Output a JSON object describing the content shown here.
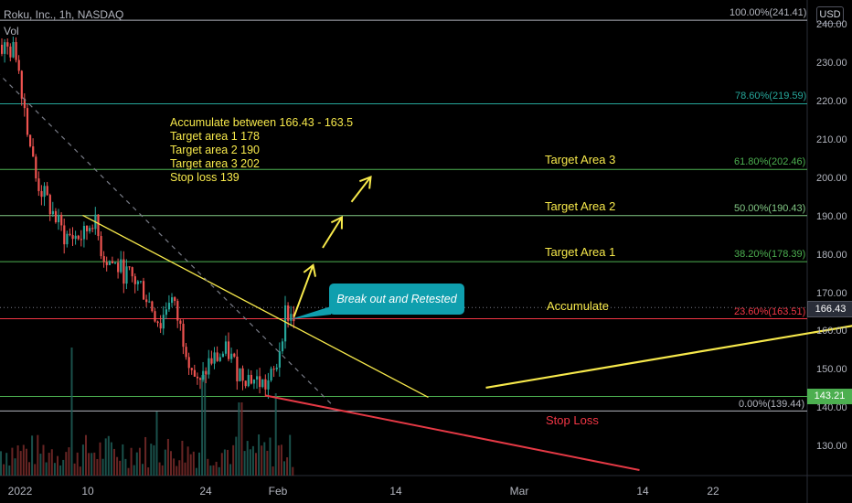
{
  "header": {
    "title": "Roku, Inc., 1h, NASDAQ",
    "vol_label": "Vol",
    "currency": "USD"
  },
  "y_ticks": [
    "240.00",
    "230.00",
    "220.00",
    "210.00",
    "200.00",
    "190.00",
    "180.00",
    "170.00",
    "160.00",
    "150.00",
    "140.00",
    "130.00"
  ],
  "x_ticks": [
    "2022",
    "10",
    "24",
    "Feb",
    "14",
    "Mar",
    "14",
    "22"
  ],
  "fib_levels": [
    {
      "label": "100.00%(241.41)",
      "price": 241.41,
      "color": "#b2b5be"
    },
    {
      "label": "78.60%(219.59)",
      "price": 219.59,
      "color": "#26a69a"
    },
    {
      "label": "61.80%(202.46)",
      "price": 202.46,
      "color": "#4caf50"
    },
    {
      "label": "50.00%(190.43)",
      "price": 190.43,
      "color": "#81c784"
    },
    {
      "label": "38.20%(178.39)",
      "price": 178.39,
      "color": "#4caf50"
    },
    {
      "label": "23.60%(163.51)",
      "price": 163.51,
      "color": "#f23645"
    },
    {
      "label": "0.00%(139.44)",
      "price": 139.44,
      "color": "#b2b5be"
    }
  ],
  "annotations": {
    "notes": [
      "Accumulate between 166.43 - 163.5",
      "Target area 1 178",
      "Target area 2 190",
      "Target area 3 202",
      "Stop loss 139"
    ],
    "target3": "Target Area 3",
    "target2": "Target Area 2",
    "target1": "Target Area 1",
    "accumulate": "Accumulate",
    "stop_loss": "Stop Loss",
    "callout": "Break out and Retested"
  },
  "price_labels": {
    "last": "166.43",
    "stop": "143.21"
  },
  "colors": {
    "up": "#26a69a",
    "down": "#ef5350",
    "annotation": "#f7e94b",
    "callout": "#0f9fae"
  },
  "chart_data": {
    "type": "candlestick",
    "title": "Roku, Inc., 1h, NASDAQ",
    "ylim": [
      123,
      243
    ],
    "x_range": [
      "2022-01-03",
      "2022-03-25"
    ],
    "price_series": {
      "name": "ROKU",
      "x": [
        "2022-01-03",
        "2022-01-05",
        "2022-01-06",
        "2022-01-07",
        "2022-01-10",
        "2022-01-12",
        "2022-01-13",
        "2022-01-14",
        "2022-01-18",
        "2022-01-20",
        "2022-01-21",
        "2022-01-24",
        "2022-01-25",
        "2022-01-27",
        "2022-01-28",
        "2022-01-31",
        "2022-02-01",
        "2022-02-02",
        "2022-02-03"
      ],
      "close": [
        235,
        233,
        216,
        200,
        185,
        185,
        190,
        180,
        172,
        162,
        170,
        145,
        152,
        155,
        150,
        146,
        150,
        165,
        164
      ]
    },
    "last_price": 166.43,
    "fib_levels": [
      241.41,
      219.59,
      202.46,
      190.43,
      178.39,
      163.51,
      139.44
    ],
    "horizontal_level": 143.21,
    "trendlines": [
      {
        "name": "downtrend",
        "from": [
          "2022-01-12",
          190.5
        ],
        "to": [
          "2022-02-17",
          143
        ]
      },
      {
        "name": "dashed",
        "from": [
          "2022-01-01",
          233
        ],
        "to": [
          "2022-02-07",
          141
        ]
      },
      {
        "name": "stop-line",
        "from": [
          "2022-01-31",
          143.5
        ],
        "to": [
          "2022-03-11",
          124
        ]
      },
      {
        "name": "support",
        "from": [
          "2022-02-23",
          145.5
        ],
        "to": [
          "2022-04-03",
          162
        ]
      }
    ],
    "arrows": [
      {
        "from": [
          "2022-02-03",
          164
        ],
        "to": [
          "2022-02-05",
          177.5
        ]
      },
      {
        "from": [
          "2022-02-06",
          182
        ],
        "to": [
          "2022-02-08",
          190
        ]
      },
      {
        "from": [
          "2022-02-09",
          194
        ],
        "to": [
          "2022-02-11",
          200.5
        ]
      }
    ]
  }
}
